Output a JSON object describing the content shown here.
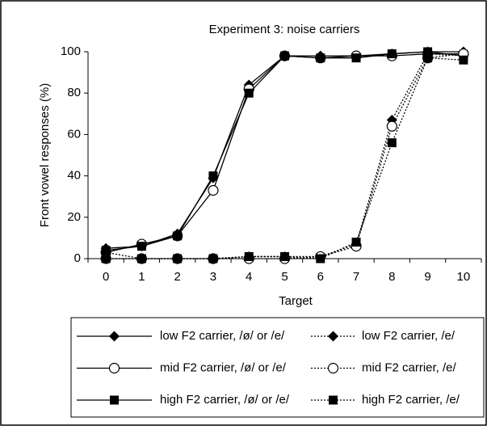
{
  "chart_data": {
    "type": "line",
    "title": "Experiment 3: noise carriers",
    "x_label": "Target",
    "y_label": "Front vowel responses (%)",
    "categories": [
      "0",
      "1",
      "2",
      "3",
      "4",
      "5",
      "6",
      "7",
      "8",
      "9",
      "10"
    ],
    "ylim": [
      0,
      100
    ],
    "yticks": [
      0,
      20,
      40,
      60,
      80,
      100
    ],
    "grid": false,
    "series": [
      {
        "name": "low F2 carrier, /ø/ or /e/",
        "color": "#000000",
        "line_style": "solid",
        "marker": "diamond",
        "values": [
          5,
          6,
          12,
          39,
          84,
          98,
          98,
          98,
          99,
          100,
          100
        ]
      },
      {
        "name": "mid F2 carrier, /ø/ or /e/",
        "color": "#000000",
        "line_style": "solid",
        "marker": "circle",
        "values": [
          3,
          7,
          11,
          33,
          82,
          98,
          97,
          98,
          98,
          99,
          99
        ]
      },
      {
        "name": "high F2 carrier, /ø/ or /e/",
        "color": "#000000",
        "line_style": "solid",
        "marker": "square",
        "values": [
          4,
          6,
          11,
          40,
          80,
          98,
          97,
          97,
          99,
          100,
          98
        ]
      },
      {
        "name": "low F2 carrier, /e/",
        "color": "#000000",
        "line_style": "dotted",
        "marker": "diamond",
        "values": [
          3,
          0,
          0,
          0,
          1,
          1,
          1,
          7,
          67,
          99,
          98
        ]
      },
      {
        "name": "mid F2 carrier, /e/",
        "color": "#000000",
        "line_style": "dotted",
        "marker": "circle",
        "values": [
          0,
          0,
          0,
          0,
          0,
          0,
          1,
          6,
          64,
          97,
          99
        ]
      },
      {
        "name": "high F2 carrier, /e/",
        "color": "#000000",
        "line_style": "dotted",
        "marker": "square",
        "values": [
          0,
          0,
          0,
          0,
          1,
          1,
          0,
          8,
          56,
          97,
          96
        ]
      }
    ]
  }
}
